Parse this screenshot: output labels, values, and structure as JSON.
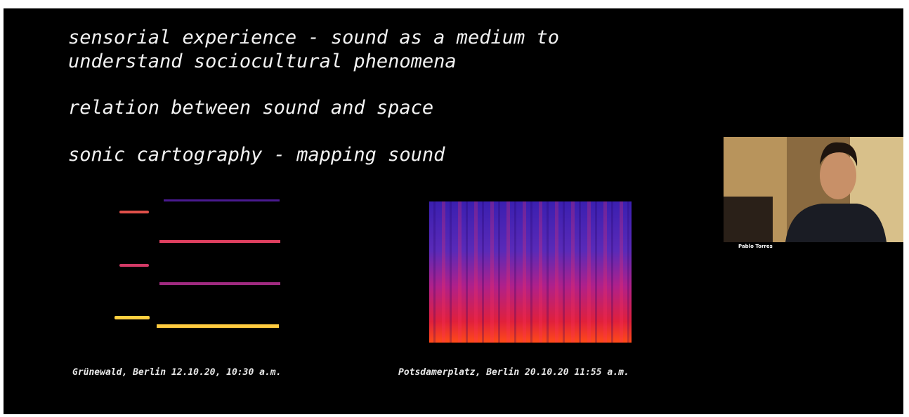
{
  "slide": {
    "lines": [
      "sensorial experience - sound as a medium to",
      "understand sociocultural phenomena",
      "relation between sound and space",
      "sonic cartography - mapping sound"
    ],
    "captions": [
      "Grünewald, Berlin 12.10.20, 10:30 a.m.",
      "Potsdamerplatz, Berlin 20.10.20 11:55 a.m."
    ]
  },
  "participant": {
    "name": "Pablo Torres"
  }
}
